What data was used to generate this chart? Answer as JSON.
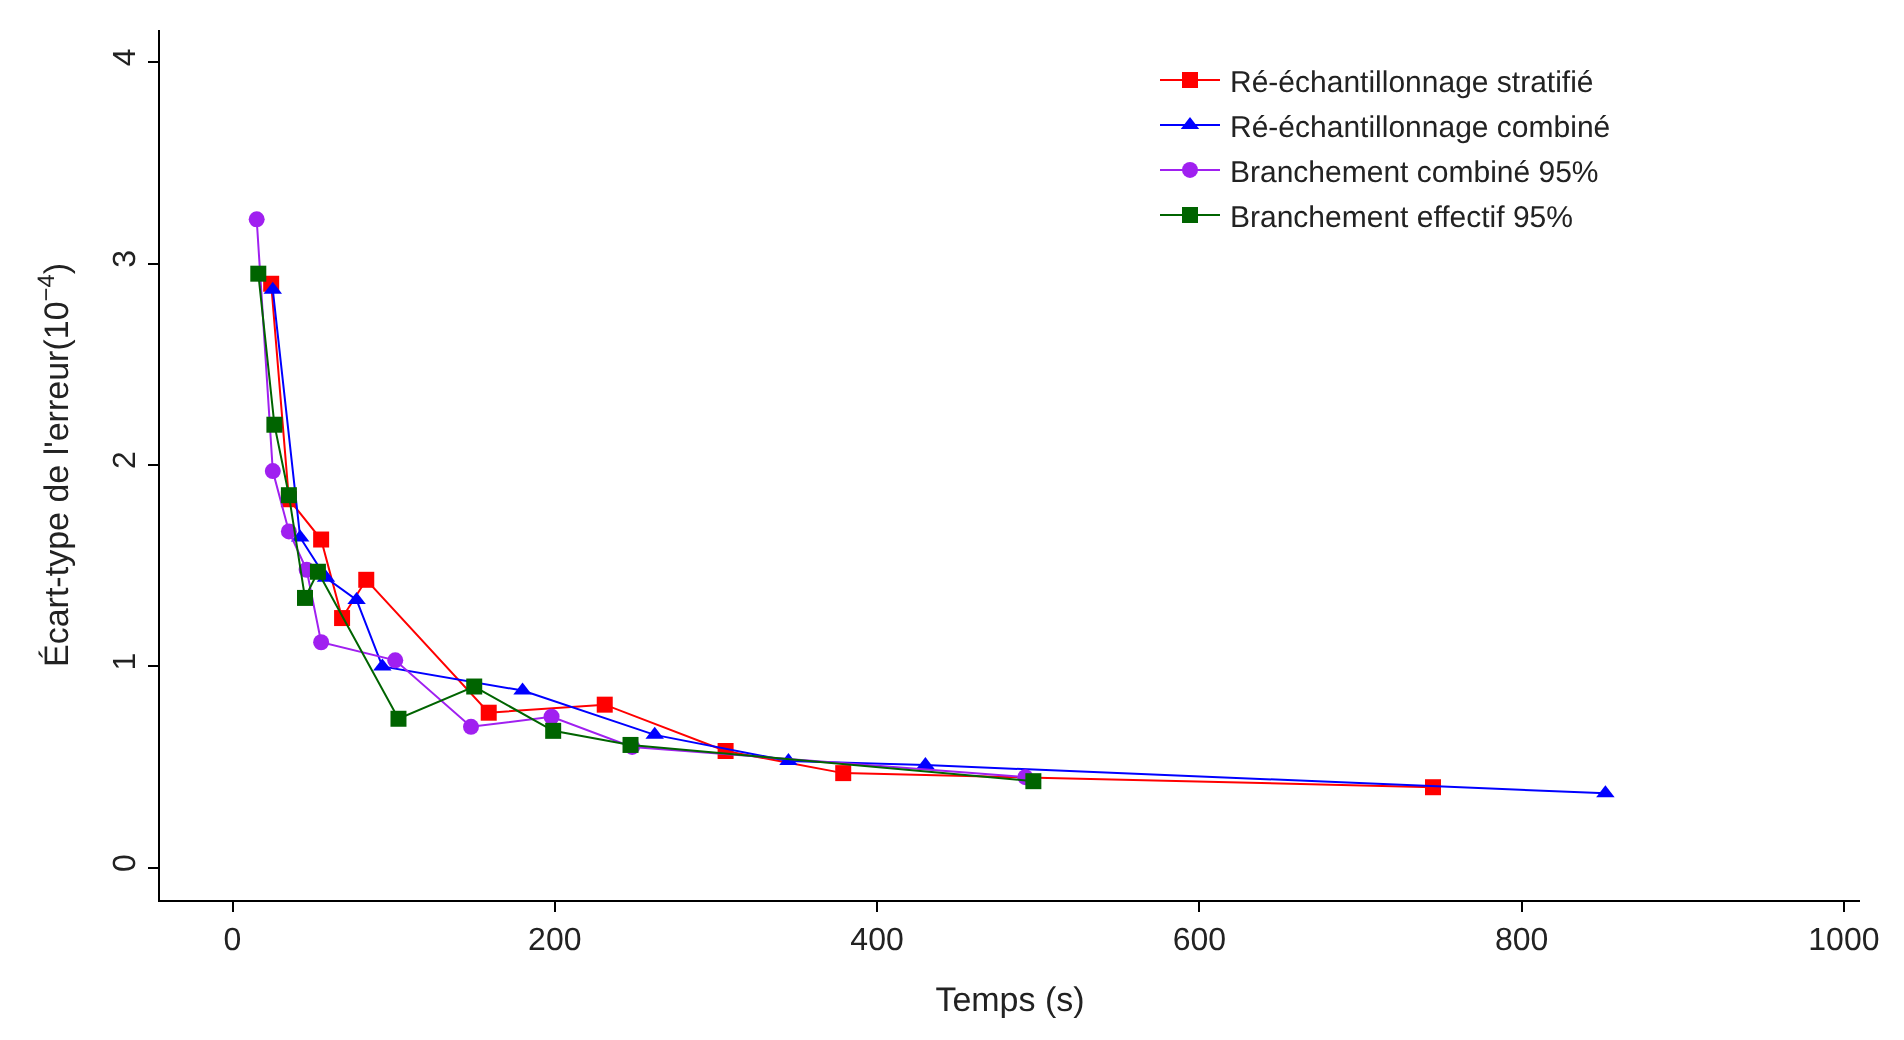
{
  "chart_data": {
    "type": "line",
    "xlabel": "Temps (s)",
    "ylabel": "Écart-type de l'erreur(10$^{−4}$)",
    "xlim": [
      -45,
      1010
    ],
    "ylim": [
      -0.16,
      4.16
    ],
    "xticks": [
      0,
      200,
      400,
      600,
      800,
      1000
    ],
    "yticks": [
      0,
      1,
      2,
      3,
      4
    ],
    "legend": "top right",
    "series": [
      {
        "name": "Ré-échantillonnage stratifié",
        "color": "#ff0000",
        "marker": "square",
        "x": [
          24,
          35,
          55,
          68,
          83,
          159,
          231,
          306,
          379,
          745
        ],
        "values": [
          2.9,
          1.83,
          1.63,
          1.24,
          1.43,
          0.77,
          0.81,
          0.58,
          0.47,
          0.4
        ]
      },
      {
        "name": "Ré-échantillonnage combiné",
        "color": "#0000ff",
        "marker": "triangle",
        "x": [
          25,
          42,
          58,
          77,
          93,
          180,
          262,
          345,
          430,
          852
        ],
        "values": [
          2.87,
          1.64,
          1.44,
          1.33,
          1.0,
          0.88,
          0.66,
          0.53,
          0.51,
          0.37
        ]
      },
      {
        "name": "Branchement combiné 95%",
        "color": "#a020f0",
        "marker": "circle",
        "x": [
          15,
          25,
          35,
          46,
          55,
          101,
          148,
          198,
          248,
          492
        ],
        "values": [
          3.22,
          1.97,
          1.67,
          1.48,
          1.12,
          1.03,
          0.7,
          0.75,
          0.6,
          0.45
        ]
      },
      {
        "name": "Branchement effectif 95%",
        "color": "#006400",
        "marker": "square",
        "x": [
          16,
          26,
          35,
          45,
          53,
          103,
          150,
          199,
          247,
          497
        ],
        "values": [
          2.95,
          2.2,
          1.85,
          1.34,
          1.47,
          0.74,
          0.9,
          0.68,
          0.61,
          0.43
        ]
      }
    ]
  }
}
